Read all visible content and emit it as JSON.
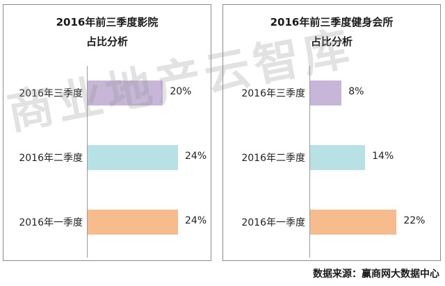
{
  "chart_data": [
    {
      "type": "bar",
      "orientation": "horizontal",
      "title": "2016年前三季度影院",
      "subtitle": "占比分析",
      "categories": [
        "2016年三季度",
        "2016年二季度",
        "2016年一季度"
      ],
      "values": [
        20,
        24,
        24
      ],
      "value_labels": [
        "20%",
        "24%",
        "24%"
      ],
      "colors": [
        "#c7b6d8",
        "#b8e1e5",
        "#f6bc8e"
      ],
      "xlim": [
        0,
        24
      ]
    },
    {
      "type": "bar",
      "orientation": "horizontal",
      "title": "2016年前三季度健身会所",
      "subtitle": "占比分析",
      "categories": [
        "2016年三季度",
        "2016年二季度",
        "2016年一季度"
      ],
      "values": [
        8,
        14,
        22
      ],
      "value_labels": [
        "8%",
        "14%",
        "22%"
      ],
      "colors": [
        "#c7b6d8",
        "#b8e1e5",
        "#f6bc8e"
      ],
      "xlim": [
        0,
        23
      ]
    }
  ],
  "watermark": "商业地产云智库",
  "source": "数据来源：赢商网大数据中心"
}
